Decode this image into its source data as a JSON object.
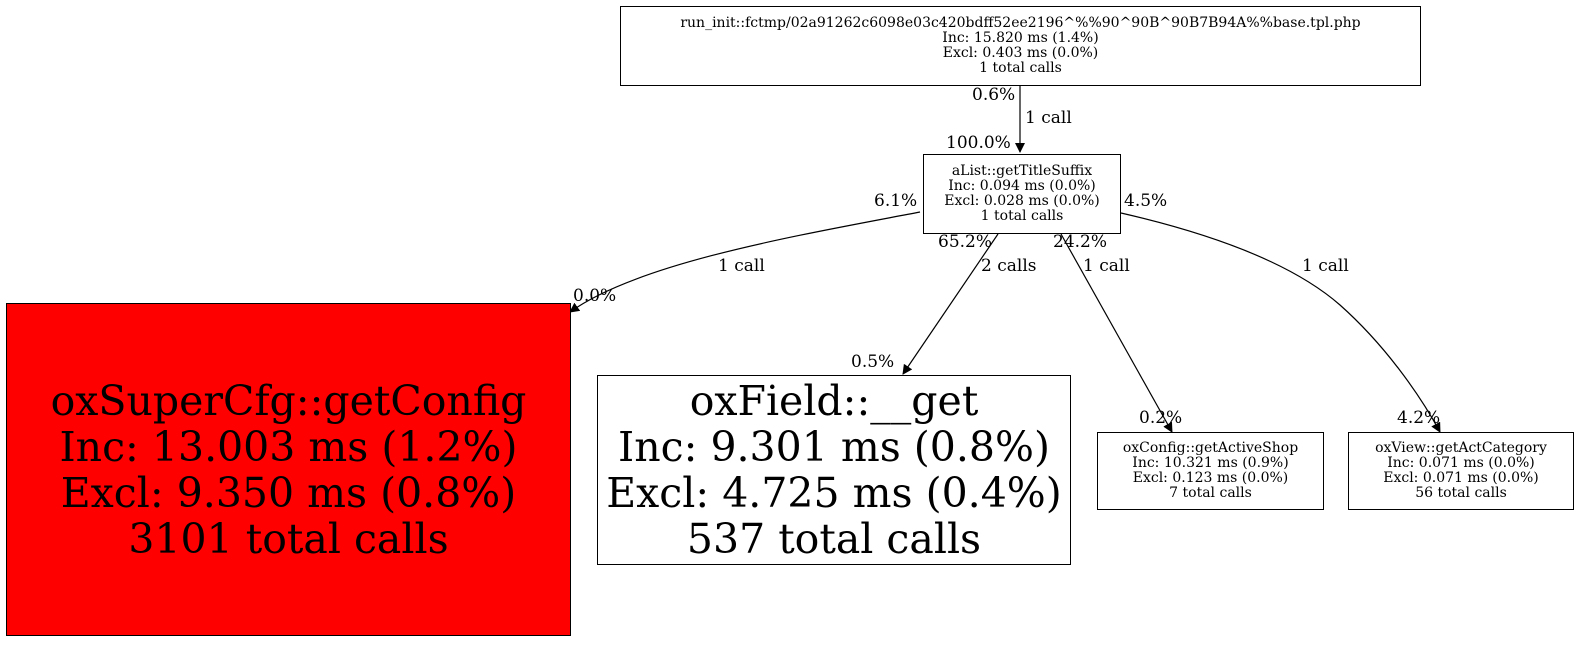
{
  "nodes": {
    "root": {
      "name": "run_init::fctmp/02a91262c6098e03c420bdff52ee2196^%%90^90B^90B7B94A%%base.tpl.php",
      "inc": "Inc: 15.820 ms (1.4%)",
      "excl": "Excl: 0.403 ms (0.0%)",
      "calls": "1 total calls"
    },
    "alist": {
      "name": "aList::getTitleSuffix",
      "inc": "Inc: 0.094 ms (0.0%)",
      "excl": "Excl: 0.028 ms (0.0%)",
      "calls": "1 total calls"
    },
    "supercfg": {
      "name": "oxSuperCfg::getConfig",
      "inc": "Inc: 13.003 ms (1.2%)",
      "excl": "Excl: 9.350 ms (0.8%)",
      "calls": "3101 total calls",
      "color": "#ff0000"
    },
    "field": {
      "name": "oxField::__get",
      "inc": "Inc: 9.301 ms (0.8%)",
      "excl": "Excl: 4.725 ms (0.4%)",
      "calls": "537 total calls"
    },
    "shop": {
      "name": "oxConfig::getActiveShop",
      "inc": "Inc: 10.321 ms (0.9%)",
      "excl": "Excl: 0.123 ms (0.0%)",
      "calls": "7 total calls"
    },
    "category": {
      "name": "oxView::getActCategory",
      "inc": "Inc: 0.071 ms (0.0%)",
      "excl": "Excl: 0.071 ms (0.0%)",
      "calls": "56 total calls"
    }
  },
  "edges": {
    "root_alist": {
      "tail": "0.6%",
      "head": "100.0%",
      "calls": "1 call"
    },
    "alist_supercfg": {
      "tail": "6.1%",
      "head": "0.0%",
      "calls": "1 call"
    },
    "alist_field": {
      "tail": "65.2%",
      "head": "0.5%",
      "calls": "2 calls"
    },
    "alist_shop": {
      "tail": "24.2%",
      "head": "0.2%",
      "calls": "1 call"
    },
    "alist_category": {
      "tail": "4.5%",
      "head": "4.2%",
      "calls": "1 call"
    }
  }
}
